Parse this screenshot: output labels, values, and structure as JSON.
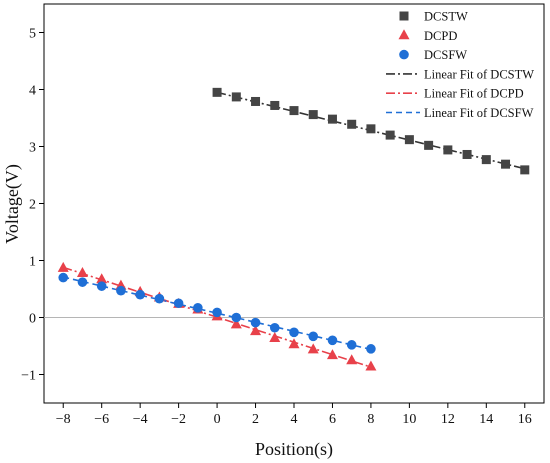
{
  "chart_data": {
    "type": "scatter",
    "xlabel": "Position(s)",
    "ylabel": "Voltage(V)",
    "xlim": [
      -9,
      17
    ],
    "ylim": [
      -1.5,
      5.5
    ],
    "xticks": [
      -8,
      -6,
      -4,
      -2,
      0,
      2,
      4,
      6,
      8,
      10,
      12,
      14,
      16
    ],
    "yticks": [
      -1,
      0,
      1,
      2,
      3,
      4,
      5
    ],
    "reference_line_y": 0,
    "grid": false,
    "legend_position": "top-right",
    "series": [
      {
        "name": "DCSTW",
        "marker": "square",
        "color": "#454545",
        "x": [
          0,
          1,
          2,
          3,
          4,
          5,
          6,
          7,
          8,
          9,
          10,
          11,
          12,
          13,
          14,
          15,
          16
        ],
        "y": [
          3.95,
          3.87,
          3.79,
          3.72,
          3.63,
          3.56,
          3.48,
          3.39,
          3.31,
          3.2,
          3.12,
          3.02,
          2.94,
          2.86,
          2.77,
          2.69,
          2.59
        ]
      },
      {
        "name": "DCPD",
        "marker": "triangle",
        "color": "#e8414a",
        "x": [
          -8,
          -7,
          -6,
          -5,
          -4,
          -3,
          -2,
          -1,
          0,
          1,
          2,
          3,
          4,
          5,
          6,
          7,
          8
        ],
        "y": [
          0.87,
          0.78,
          0.67,
          0.56,
          0.45,
          0.35,
          0.24,
          0.14,
          0.02,
          -0.12,
          -0.24,
          -0.36,
          -0.47,
          -0.56,
          -0.66,
          -0.75,
          -0.86
        ]
      },
      {
        "name": "DCSFW",
        "marker": "circle",
        "color": "#1f6fd6",
        "x": [
          -8,
          -7,
          -6,
          -5,
          -4,
          -3,
          -2,
          -1,
          0,
          1,
          2,
          3,
          4,
          5,
          6,
          7,
          8
        ],
        "y": [
          0.7,
          0.62,
          0.55,
          0.47,
          0.4,
          0.33,
          0.25,
          0.17,
          0.09,
          0.0,
          -0.09,
          -0.18,
          -0.26,
          -0.33,
          -0.4,
          -0.48,
          -0.55
        ]
      }
    ],
    "fits": [
      {
        "name": "Linear Fit of DCSTW",
        "color": "#333333",
        "dash": "dash-dot",
        "x": [
          0,
          16
        ],
        "y": [
          3.95,
          2.61
        ]
      },
      {
        "name": "Linear Fit of DCPD",
        "color": "#e8414a",
        "dash": "dash-dot",
        "x": [
          -8,
          8
        ],
        "y": [
          0.88,
          -0.87
        ]
      },
      {
        "name": "Linear Fit of DCSFW",
        "color": "#1f6fd6",
        "dash": "dashed",
        "x": [
          -8,
          8
        ],
        "y": [
          0.71,
          -0.56
        ]
      }
    ]
  }
}
